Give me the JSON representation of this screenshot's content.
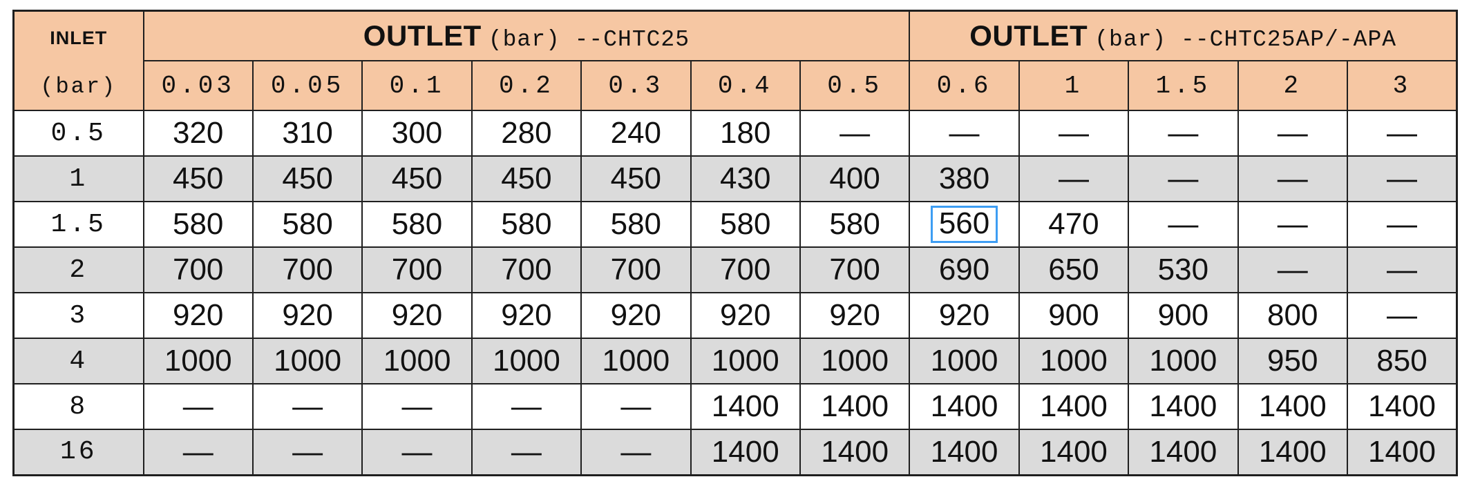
{
  "table": {
    "corner": {
      "line1": "INLET",
      "line2": "(bar)"
    },
    "group_headers": [
      {
        "bold": "OUTLET",
        "rest": "(bar) --CHTC25",
        "colspan": 7
      },
      {
        "bold": "OUTLET",
        "rest": "(bar) --CHTC25AP/-APA",
        "colspan": 5
      }
    ],
    "outlet_columns": [
      "0.03",
      "0.05",
      "0.1",
      "0.2",
      "0.3",
      "0.4",
      "0.5",
      "0.6",
      "1",
      "1.5",
      "2",
      "3"
    ],
    "empty_marker": "—",
    "rows": [
      {
        "inlet": "0.5",
        "values": [
          "320",
          "310",
          "300",
          "280",
          "240",
          "180",
          "—",
          "—",
          "—",
          "—",
          "—",
          "—"
        ]
      },
      {
        "inlet": "1",
        "values": [
          "450",
          "450",
          "450",
          "450",
          "450",
          "430",
          "400",
          "380",
          "—",
          "—",
          "—",
          "—"
        ]
      },
      {
        "inlet": "1.5",
        "values": [
          "580",
          "580",
          "580",
          "580",
          "580",
          "580",
          "580",
          "560",
          "470",
          "—",
          "—",
          "—"
        ]
      },
      {
        "inlet": "2",
        "values": [
          "700",
          "700",
          "700",
          "700",
          "700",
          "700",
          "700",
          "690",
          "650",
          "530",
          "—",
          "—"
        ]
      },
      {
        "inlet": "3",
        "values": [
          "920",
          "920",
          "920",
          "920",
          "920",
          "920",
          "920",
          "920",
          "900",
          "900",
          "800",
          "—"
        ]
      },
      {
        "inlet": "4",
        "values": [
          "1000",
          "1000",
          "1000",
          "1000",
          "1000",
          "1000",
          "1000",
          "1000",
          "1000",
          "1000",
          "950",
          "850"
        ]
      },
      {
        "inlet": "8",
        "values": [
          "—",
          "—",
          "—",
          "—",
          "—",
          "1400",
          "1400",
          "1400",
          "1400",
          "1400",
          "1400",
          "1400"
        ]
      },
      {
        "inlet": "16",
        "values": [
          "—",
          "—",
          "—",
          "—",
          "—",
          "1400",
          "1400",
          "1400",
          "1400",
          "1400",
          "1400",
          "1400"
        ]
      }
    ],
    "highlight": {
      "row_index": 2,
      "col_index": 7,
      "value": "560"
    }
  },
  "colors": {
    "header_bg": "#f6c7a3",
    "alt_row_bg": "#dbdbdb",
    "row_bg": "#ffffff",
    "border": "#1f1f1f",
    "highlight_border": "#3d9df3"
  }
}
